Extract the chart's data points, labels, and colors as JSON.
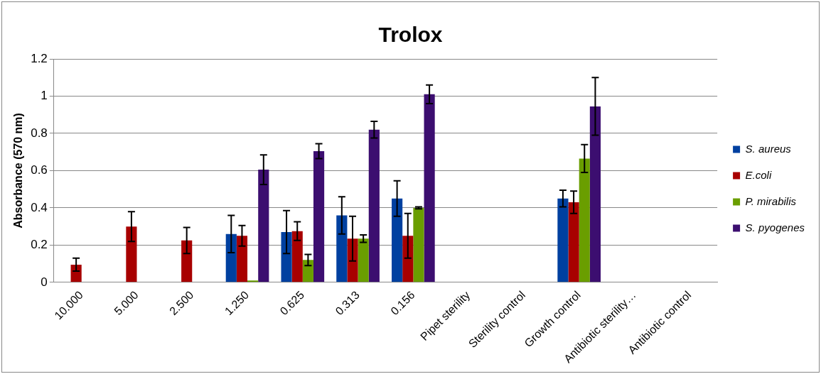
{
  "chart_data": {
    "type": "bar",
    "title": "Trolox",
    "ylabel": "Absorbance (570 nm)",
    "categories": [
      "10.000",
      "5.000",
      "2.500",
      "1.250",
      "0.625",
      "0.313",
      "0.156",
      "Pipet sterility",
      "Sterility control",
      "Growth control",
      "Antibiotic sterility…",
      "Antibiotic control"
    ],
    "series": [
      {
        "name": "S. aureus",
        "color": "#0040a0",
        "values": [
          0,
          0,
          0,
          0.26,
          0.27,
          0.36,
          0.45,
          null,
          null,
          0.45,
          null,
          null
        ],
        "errors": [
          null,
          null,
          null,
          0.1,
          0.115,
          0.1,
          0.095,
          null,
          null,
          0.045,
          null,
          null
        ]
      },
      {
        "name": "E.coli",
        "color": "#a80000",
        "values": [
          0.095,
          0.3,
          0.225,
          0.25,
          0.275,
          0.235,
          0.25,
          null,
          null,
          0.43,
          null,
          null
        ],
        "errors": [
          0.035,
          0.08,
          0.07,
          0.055,
          0.05,
          0.12,
          0.12,
          null,
          null,
          0.06,
          null,
          null
        ]
      },
      {
        "name": "P. mirabilis",
        "color": "#6a9e00",
        "values": [
          0,
          0,
          0,
          0.01,
          0.12,
          0.235,
          0.4,
          null,
          null,
          0.665,
          null,
          null
        ],
        "errors": [
          null,
          null,
          null,
          null,
          0.03,
          0.02,
          0.005,
          null,
          null,
          0.075,
          null,
          null
        ]
      },
      {
        "name": "S. pyogenes",
        "color": "#3c0e70",
        "values": [
          0,
          0,
          0,
          0.605,
          0.705,
          0.82,
          1.01,
          null,
          null,
          0.945,
          null,
          null
        ],
        "errors": [
          null,
          null,
          null,
          0.08,
          0.04,
          0.045,
          0.05,
          null,
          null,
          0.155,
          null,
          null
        ]
      }
    ],
    "ylim": [
      0,
      1.2
    ],
    "yticks": [
      0,
      0.2,
      0.4,
      0.6,
      0.8,
      1,
      1.2
    ],
    "grid": "y",
    "legend": "right"
  }
}
